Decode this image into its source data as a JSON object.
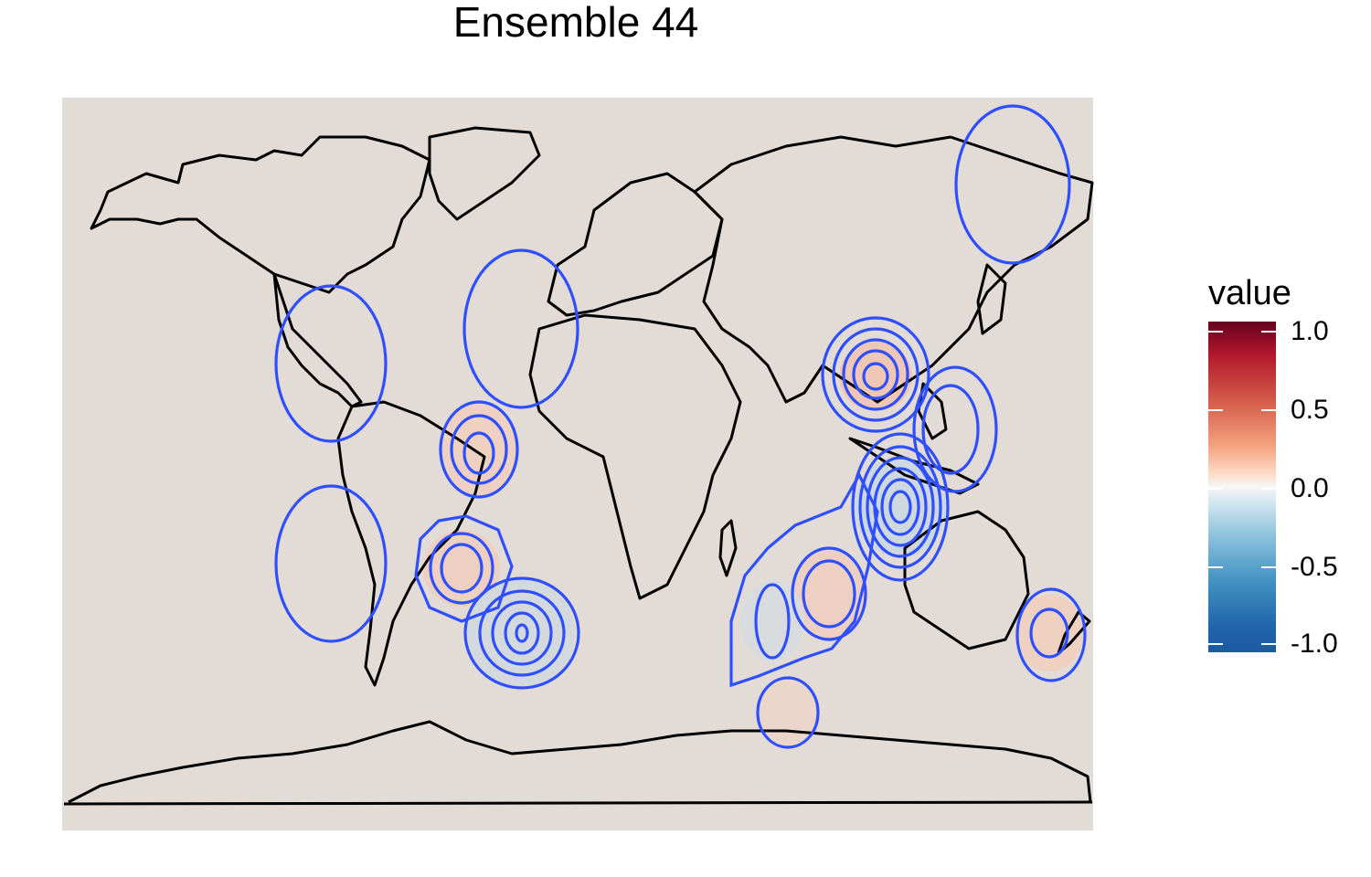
{
  "title": "Ensemble 44",
  "legend": {
    "title": "value",
    "ticks": [
      "1.0",
      "0.5",
      "0.0",
      "-0.5",
      "-1.0"
    ],
    "colors": [
      "#67001f",
      "#b2182b",
      "#d6604d",
      "#f4a582",
      "#fddbc7",
      "#f7f7f7",
      "#d1e5f0",
      "#92c5de",
      "#4393c3",
      "#2166ac"
    ]
  },
  "map": {
    "background_color": "#e2dbd6",
    "contour_color": "#3050ff",
    "coastline_color": "#000000",
    "features": [
      {
        "name": "north-america-low",
        "sign": "negative"
      },
      {
        "name": "north-atlantic-low",
        "sign": "negative"
      },
      {
        "name": "south-atlantic-high-north",
        "sign": "positive"
      },
      {
        "name": "south-atlantic-high-south",
        "sign": "positive"
      },
      {
        "name": "south-atlantic-low",
        "sign": "negative"
      },
      {
        "name": "south-pacific-low",
        "sign": "negative"
      },
      {
        "name": "southeast-asia-high",
        "sign": "positive"
      },
      {
        "name": "indonesia-low",
        "sign": "negative"
      },
      {
        "name": "indian-ocean-high",
        "sign": "positive"
      },
      {
        "name": "indian-ocean-low",
        "sign": "negative"
      },
      {
        "name": "new-zealand-high",
        "sign": "positive"
      },
      {
        "name": "antarctic-high",
        "sign": "positive"
      },
      {
        "name": "siberia-low",
        "sign": "negative"
      }
    ]
  }
}
